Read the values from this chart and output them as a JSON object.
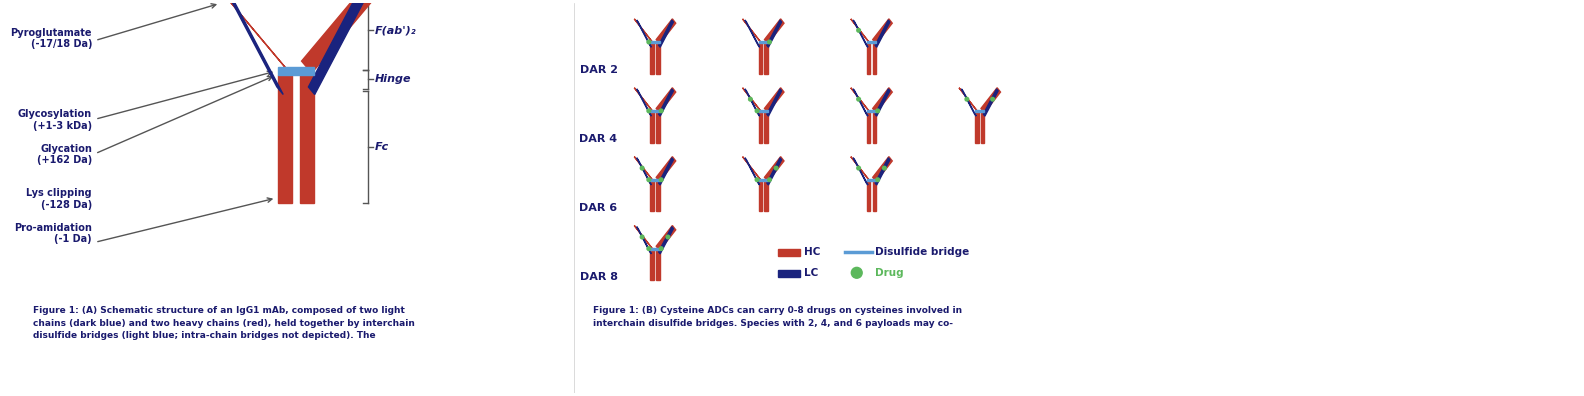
{
  "bg_color": "#ffffff",
  "fig_width": 15.84,
  "fig_height": 3.96,
  "text_color_dark": "#1a1a6e",
  "text_color_gray": "#555555",
  "hc_color": "#c0392b",
  "lc_color": "#1a237e",
  "hinge_color": "#5b9bd5",
  "drug_color": "#5cb85c",
  "caption_left": "Figure 1: (A) Schematic structure of an IgG1 mAb, composed of two light\nchains (dark blue) and two heavy chains (red), held together by interchain\ndisulfide bridges (light blue; intra-chain bridges not depicted). The",
  "caption_right": "Figure 1: (B) Cysteine ADCs can carry 0-8 drugs on cysteines involved in\ninterchain disulfide bridges. Species with 2, 4, and 6 payloads may co-",
  "label_pyroglutamate": "Pyroglutamate\n(-17/18 Da)",
  "label_glycosylation": "Glycosylation\n(+1-3 kDa)",
  "label_glycation": "Glycation\n(+162 Da)",
  "label_lys": "Lys clipping\n(-128 Da)",
  "label_proamid": "Pro-amidation\n(-1 Da)",
  "dar_labels": [
    "DAR 2",
    "DAR 4",
    "DAR 6",
    "DAR 8"
  ],
  "legend_hc": "HC",
  "legend_lc": "LC",
  "legend_disulfide": "Disulfide bridge",
  "legend_drug": "Drug"
}
